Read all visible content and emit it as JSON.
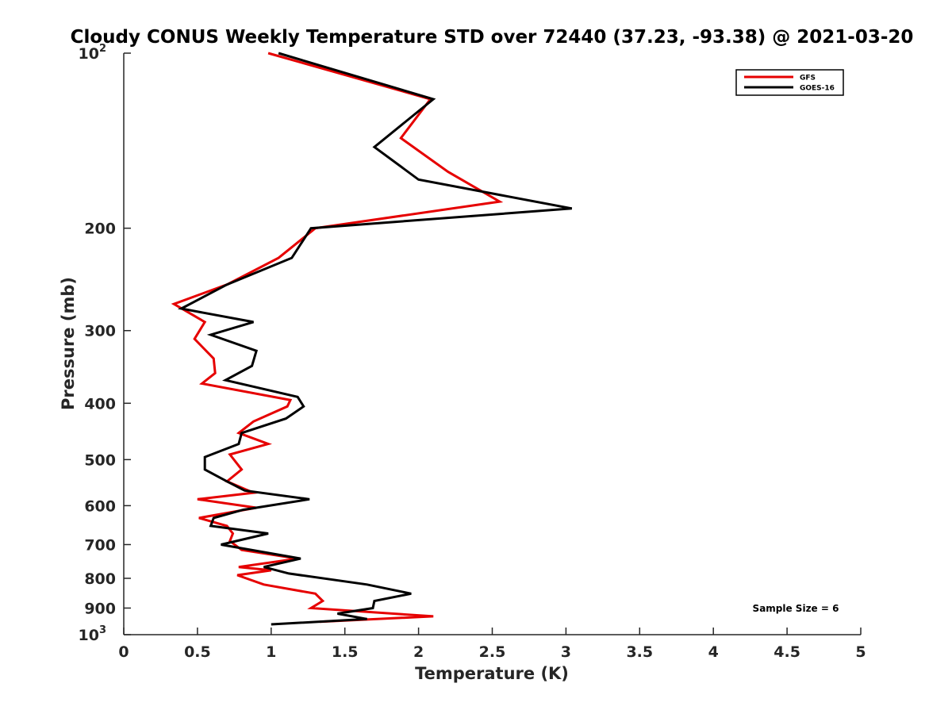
{
  "chart_data": {
    "type": "line",
    "title": "Cloudy CONUS Weekly Temperature STD over 72440 (37.23, -93.38) @ 2021-03-20",
    "xlabel": "Temperature (K)",
    "ylabel": "Pressure (mb)",
    "xlim": [
      0,
      5
    ],
    "ylim": [
      100,
      1000
    ],
    "yscale": "log",
    "y_reversed": true,
    "grid": false,
    "legend_position": "top-right",
    "x_ticks": [
      0,
      0.5,
      1,
      1.5,
      2,
      2.5,
      3,
      3.5,
      4,
      4.5,
      5
    ],
    "x_tick_labels": [
      "0",
      "0.5",
      "1",
      "1.5",
      "2",
      "2.5",
      "3",
      "3.5",
      "4",
      "4.5",
      "5"
    ],
    "y_ticks": [
      100,
      200,
      300,
      400,
      500,
      600,
      700,
      800,
      900,
      1000
    ],
    "y_tick_labels": [
      "10^2",
      "200",
      "300",
      "400",
      "500",
      "600",
      "700",
      "800",
      "900",
      "10^3"
    ],
    "annotation": "Sample Size = 6",
    "series": [
      {
        "name": "GFS",
        "color": "#e60000",
        "x": [
          0.98,
          2.08,
          1.88,
          2.2,
          2.55,
          1.3,
          1.05,
          0.7,
          0.34,
          0.55,
          0.48,
          0.61,
          0.62,
          0.53,
          1.13,
          1.11,
          0.88,
          0.78,
          0.98,
          0.72,
          0.8,
          0.7,
          0.88,
          0.5,
          0.9,
          0.51,
          0.7,
          0.74,
          0.72,
          0.8,
          1.18,
          0.78,
          1.0,
          0.77,
          0.95,
          1.3,
          1.35,
          1.27,
          2.1,
          1.33
        ],
        "y": [
          100,
          120,
          140,
          160,
          180,
          200,
          225,
          250,
          270,
          290,
          310,
          335,
          355,
          370,
          395,
          405,
          430,
          450,
          470,
          490,
          520,
          545,
          570,
          585,
          605,
          630,
          650,
          670,
          690,
          715,
          740,
          765,
          775,
          790,
          820,
          850,
          875,
          900,
          930,
          950
        ]
      },
      {
        "name": "GOES-16",
        "color": "#000000",
        "x": [
          1.05,
          2.1,
          1.7,
          2.0,
          3.04,
          1.27,
          1.14,
          0.7,
          0.39,
          0.88,
          0.59,
          0.9,
          0.87,
          0.69,
          1.18,
          1.22,
          1.1,
          0.8,
          0.78,
          0.55,
          0.55,
          0.7,
          0.82,
          1.26,
          0.81,
          0.61,
          0.59,
          0.98,
          0.66,
          1.2,
          0.95,
          1.12,
          1.65,
          1.95,
          1.7,
          1.69,
          1.45,
          1.65,
          1.0
        ],
        "y": [
          100,
          120,
          145,
          165,
          185,
          200,
          225,
          250,
          275,
          290,
          305,
          325,
          345,
          365,
          390,
          405,
          425,
          450,
          470,
          495,
          520,
          545,
          565,
          585,
          610,
          630,
          650,
          670,
          700,
          740,
          765,
          785,
          820,
          850,
          875,
          900,
          920,
          940,
          960
        ]
      }
    ]
  }
}
